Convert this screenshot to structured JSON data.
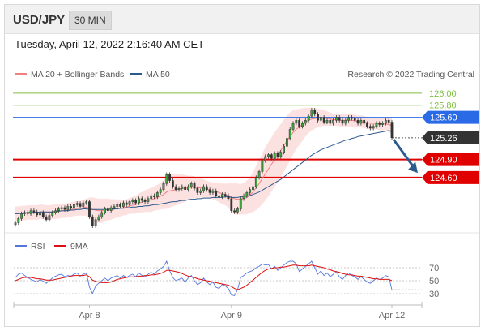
{
  "header": {
    "symbol": "USD/JPY",
    "interval": "30 MIN",
    "datetime": "Tuesday, April 12, 2022 2:16:40 AM CET"
  },
  "legend": {
    "items": [
      {
        "label": "MA 20 + Bollinger Bands",
        "color": "#f08080"
      },
      {
        "label": "MA 50",
        "color": "#2c5a8c"
      }
    ],
    "source": "Research © 2022 Trading Central"
  },
  "rsi_legend": {
    "items": [
      {
        "label": "RSI",
        "color": "#5577dd"
      },
      {
        "label": "9MA",
        "color": "#dd1111"
      }
    ]
  },
  "chart_data": {
    "type": "candlestick",
    "symbol": "USD/JPY",
    "x_ticks": [
      "Apr 8",
      "Apr 9",
      "Apr 12"
    ],
    "x_tick_index": [
      24,
      70,
      122
    ],
    "ylim": [
      123.75,
      126.2
    ],
    "levels": [
      {
        "value": 126.0,
        "label": "126.00",
        "kind": "target",
        "color": "#7fbf3f"
      },
      {
        "value": 125.8,
        "label": "125.80",
        "kind": "target",
        "color": "#7fbf3f"
      },
      {
        "value": 125.6,
        "label": "125.60",
        "kind": "pivot",
        "color": "#2a6ae6"
      },
      {
        "value": 125.26,
        "label": "125.26",
        "kind": "last",
        "color": "#333333"
      },
      {
        "value": 124.9,
        "label": "124.90",
        "kind": "support",
        "color": "#e00000"
      },
      {
        "value": 124.6,
        "label": "124.60",
        "kind": "support",
        "color": "#e00000"
      }
    ],
    "forecast_arrow": {
      "from": 125.26,
      "to": 124.65,
      "color": "#2c5a8c"
    },
    "close": [
      123.85,
      123.92,
      124.0,
      124.02,
      124.0,
      124.05,
      124.03,
      123.98,
      124.02,
      123.95,
      123.9,
      123.97,
      124.02,
      124.05,
      124.08,
      124.1,
      124.07,
      124.12,
      124.1,
      124.15,
      124.17,
      124.12,
      124.18,
      124.2,
      123.95,
      123.8,
      123.9,
      123.95,
      124.02,
      124.08,
      124.05,
      124.1,
      124.12,
      124.15,
      124.12,
      124.18,
      124.15,
      124.2,
      124.22,
      124.18,
      124.25,
      124.22,
      124.2,
      124.25,
      124.3,
      124.28,
      124.35,
      124.4,
      124.5,
      124.65,
      124.55,
      124.45,
      124.4,
      124.42,
      124.45,
      124.4,
      124.45,
      124.5,
      124.42,
      124.35,
      124.38,
      124.45,
      124.4,
      124.35,
      124.38,
      124.3,
      124.28,
      124.32,
      124.3,
      124.25,
      124.05,
      124.03,
      124.08,
      124.25,
      124.3,
      124.35,
      124.4,
      124.45,
      124.6,
      124.7,
      124.88,
      124.95,
      124.98,
      124.92,
      125.0,
      124.95,
      125.02,
      125.12,
      125.25,
      125.4,
      125.5,
      125.55,
      125.45,
      125.5,
      125.55,
      125.62,
      125.72,
      125.65,
      125.55,
      125.6,
      125.52,
      125.55,
      125.5,
      125.55,
      125.6,
      125.55,
      125.5,
      125.55,
      125.6,
      125.58,
      125.55,
      125.5,
      125.55,
      125.5,
      125.45,
      125.42,
      125.45,
      125.5,
      125.48,
      125.5,
      125.55,
      125.52,
      125.26
    ],
    "ma20": [
      124.0,
      124.0,
      124.01,
      124.01,
      124.02,
      124.02,
      124.02,
      124.02,
      124.03,
      124.03,
      124.02,
      124.02,
      124.03,
      124.03,
      124.04,
      124.05,
      124.05,
      124.06,
      124.07,
      124.08,
      124.09,
      124.09,
      124.1,
      124.11,
      124.09,
      124.07,
      124.06,
      124.05,
      124.05,
      124.06,
      124.07,
      124.07,
      124.08,
      124.09,
      124.09,
      124.1,
      124.11,
      124.13,
      124.14,
      124.15,
      124.18,
      124.19,
      124.21,
      124.22,
      124.23,
      124.25,
      124.27,
      124.29,
      124.32,
      124.36,
      124.38,
      124.39,
      124.4,
      124.41,
      124.42,
      124.42,
      124.43,
      124.44,
      124.44,
      124.43,
      124.43,
      124.42,
      124.41,
      124.39,
      124.38,
      124.37,
      124.35,
      124.33,
      124.32,
      124.3,
      124.27,
      124.25,
      124.24,
      124.24,
      124.25,
      124.27,
      124.31,
      124.36,
      124.43,
      124.5,
      124.58,
      124.66,
      124.74,
      124.82,
      124.9,
      124.97,
      125.05,
      125.13,
      125.21,
      125.28,
      125.35,
      125.4,
      125.44,
      125.48,
      125.52,
      125.55,
      125.57,
      125.58,
      125.59,
      125.59,
      125.59,
      125.58,
      125.57,
      125.56,
      125.56,
      125.55,
      125.55,
      125.55,
      125.55,
      125.55,
      125.54,
      125.53,
      125.53,
      125.52,
      125.51,
      125.5,
      125.5,
      125.5,
      125.49,
      125.49,
      125.49,
      125.48,
      125.46
    ],
    "ma50": [
      124.0,
      124.0,
      124.01,
      124.01,
      124.02,
      124.02,
      124.02,
      124.02,
      124.03,
      124.03,
      124.03,
      124.03,
      124.03,
      124.04,
      124.04,
      124.05,
      124.05,
      124.05,
      124.06,
      124.06,
      124.07,
      124.07,
      124.08,
      124.08,
      124.07,
      124.07,
      124.07,
      124.07,
      124.07,
      124.07,
      124.07,
      124.08,
      124.08,
      124.08,
      124.09,
      124.09,
      124.1,
      124.1,
      124.11,
      124.11,
      124.12,
      124.12,
      124.13,
      124.13,
      124.14,
      124.15,
      124.15,
      124.16,
      124.17,
      124.18,
      124.19,
      124.2,
      124.2,
      124.21,
      124.22,
      124.22,
      124.23,
      124.24,
      124.24,
      124.25,
      124.25,
      124.26,
      124.26,
      124.26,
      124.27,
      124.27,
      124.27,
      124.27,
      124.28,
      124.28,
      124.27,
      124.27,
      124.27,
      124.28,
      124.28,
      124.29,
      124.3,
      124.32,
      124.34,
      124.36,
      124.39,
      124.42,
      124.45,
      124.48,
      124.51,
      124.54,
      124.57,
      124.61,
      124.65,
      124.69,
      124.73,
      124.77,
      124.81,
      124.85,
      124.89,
      124.93,
      124.97,
      125.0,
      125.03,
      125.06,
      125.08,
      125.1,
      125.12,
      125.14,
      125.16,
      125.18,
      125.2,
      125.22,
      125.23,
      125.25,
      125.26,
      125.28,
      125.29,
      125.3,
      125.31,
      125.32,
      125.33,
      125.34,
      125.35,
      125.36,
      125.37,
      125.38,
      125.36
    ],
    "band_width": [
      0.12,
      0.12,
      0.12,
      0.12,
      0.12,
      0.12,
      0.12,
      0.12,
      0.12,
      0.12,
      0.12,
      0.12,
      0.12,
      0.12,
      0.12,
      0.12,
      0.12,
      0.12,
      0.12,
      0.12,
      0.12,
      0.12,
      0.13,
      0.14,
      0.18,
      0.2,
      0.2,
      0.2,
      0.2,
      0.19,
      0.18,
      0.17,
      0.16,
      0.15,
      0.14,
      0.13,
      0.13,
      0.13,
      0.14,
      0.15,
      0.16,
      0.17,
      0.18,
      0.19,
      0.2,
      0.2,
      0.21,
      0.22,
      0.24,
      0.28,
      0.28,
      0.27,
      0.26,
      0.25,
      0.24,
      0.22,
      0.2,
      0.19,
      0.18,
      0.17,
      0.16,
      0.15,
      0.14,
      0.14,
      0.14,
      0.15,
      0.16,
      0.17,
      0.18,
      0.2,
      0.24,
      0.26,
      0.26,
      0.25,
      0.26,
      0.28,
      0.3,
      0.33,
      0.37,
      0.4,
      0.42,
      0.44,
      0.45,
      0.45,
      0.45,
      0.45,
      0.44,
      0.43,
      0.42,
      0.4,
      0.37,
      0.33,
      0.3,
      0.27,
      0.24,
      0.21,
      0.19,
      0.17,
      0.15,
      0.14,
      0.13,
      0.12,
      0.11,
      0.1,
      0.1,
      0.1,
      0.1,
      0.1,
      0.1,
      0.1,
      0.1,
      0.1,
      0.1,
      0.1,
      0.1,
      0.1,
      0.1,
      0.1,
      0.1,
      0.1,
      0.1,
      0.11,
      0.15
    ],
    "rsi": {
      "levels": [
        70,
        50,
        30
      ],
      "ylim": [
        20,
        85
      ],
      "rsi": [
        55,
        60,
        62,
        58,
        55,
        52,
        50,
        48,
        52,
        49,
        46,
        50,
        54,
        57,
        59,
        60,
        56,
        58,
        57,
        60,
        62,
        57,
        60,
        62,
        40,
        30,
        42,
        46,
        50,
        54,
        50,
        54,
        56,
        58,
        54,
        58,
        55,
        58,
        60,
        56,
        62,
        58,
        56,
        60,
        63,
        60,
        65,
        68,
        72,
        80,
        65,
        55,
        50,
        52,
        54,
        48,
        54,
        58,
        50,
        44,
        47,
        54,
        48,
        44,
        48,
        40,
        38,
        44,
        42,
        38,
        28,
        27,
        36,
        55,
        58,
        62,
        64,
        66,
        70,
        72,
        76,
        74,
        75,
        68,
        72,
        66,
        70,
        74,
        78,
        80,
        80,
        76,
        64,
        68,
        72,
        76,
        80,
        70,
        60,
        65,
        58,
        62,
        56,
        60,
        64,
        56,
        52,
        58,
        62,
        58,
        56,
        52,
        56,
        52,
        48,
        46,
        50,
        54,
        52,
        54,
        58,
        56,
        36
      ],
      "ma9": [
        50,
        52,
        54,
        55,
        55,
        55,
        54,
        53,
        53,
        52,
        51,
        51,
        51,
        52,
        53,
        54,
        55,
        56,
        57,
        58,
        58,
        58,
        58,
        59,
        56,
        51,
        49,
        48,
        47,
        47,
        47,
        48,
        50,
        52,
        53,
        54,
        55,
        56,
        56,
        56,
        57,
        57,
        58,
        58,
        59,
        59,
        60,
        61,
        63,
        66,
        66,
        65,
        64,
        63,
        61,
        59,
        57,
        56,
        55,
        53,
        52,
        51,
        50,
        49,
        48,
        47,
        46,
        45,
        44,
        43,
        41,
        38,
        36,
        38,
        40,
        43,
        47,
        51,
        55,
        59,
        63,
        66,
        68,
        69,
        70,
        70,
        71,
        71,
        72,
        73,
        74,
        74,
        73,
        73,
        73,
        73,
        74,
        73,
        72,
        71,
        70,
        68,
        67,
        65,
        64,
        63,
        61,
        60,
        59,
        59,
        58,
        57,
        57,
        56,
        55,
        54,
        53,
        53,
        52,
        52,
        52,
        52,
        50
      ]
    }
  }
}
